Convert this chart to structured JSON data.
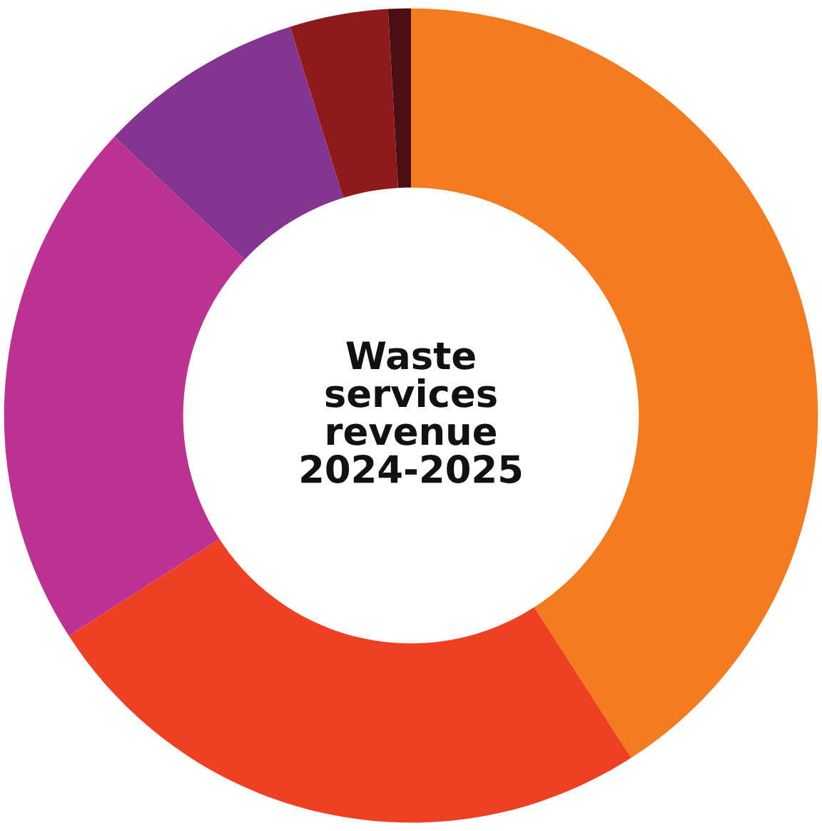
{
  "chart_data": {
    "type": "donut",
    "title": "Waste\nservices\nrevenue\n2024-2025",
    "categories": [
      null,
      null,
      null,
      null,
      null,
      null
    ],
    "values": [
      40.9,
      25.0,
      21.1,
      8.2,
      3.9,
      0.9
    ],
    "colors": [
      "#f47b20",
      "#ee4123",
      "#bc3191",
      "#843591",
      "#8f1a1a",
      "#4a0f14"
    ]
  }
}
